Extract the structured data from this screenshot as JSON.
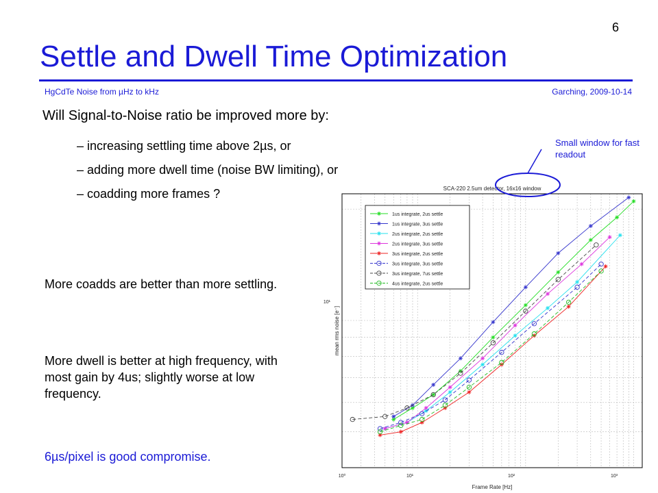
{
  "page_number": "6",
  "title": "Settle and Dwell Time Optimization",
  "footer": {
    "left": "HgCdTe Noise from µHz to kHz",
    "right": "Garching, 2009-10-14"
  },
  "question": "Will Signal-to-Noise ratio be improved more by:",
  "bullets": [
    "– increasing settling time above 2µs, or",
    "– adding more dwell time (noise BW limiting), or",
    "– coadding more frames ?"
  ],
  "callout": "Small window for fast readout",
  "notes": [
    "More coadds are better than more settling.",
    "More dwell is better at high frequency, with most gain by 4us; slightly worse at low frequency."
  ],
  "conclusion": "6µs/pixel is good compromise.",
  "colors": {
    "accent": "#1a1ad6"
  },
  "chart_data": {
    "type": "line",
    "title": "SCA-220 2.5um detector, 16x16 window",
    "xlabel": "Frame Rate [Hz]",
    "ylabel": "mean rms noise [e⁻]",
    "x_scale": "log",
    "y_scale": "log",
    "xlim": [
      2,
      1200
    ],
    "ylim": [
      4,
      22
    ],
    "xticks": [
      "10⁰",
      "10¹",
      "10²",
      "10³"
    ],
    "ytick_label": "10¹",
    "grid": true,
    "legend_position": "top-left",
    "series": [
      {
        "name": "1us integrate, 2us settle",
        "color": "#22dd22",
        "dash": false,
        "marker": "star",
        "x": [
          6,
          9,
          14,
          25,
          50,
          100,
          200,
          400,
          700,
          1000
        ],
        "y": [
          5.4,
          5.8,
          6.3,
          7.3,
          9.0,
          11.0,
          13.5,
          16.5,
          19.0,
          21.0
        ]
      },
      {
        "name": "1us integrate, 3us settle",
        "color": "#3333cc",
        "dash": false,
        "marker": "star",
        "x": [
          6,
          9,
          14,
          25,
          50,
          100,
          200,
          400,
          900
        ],
        "y": [
          5.5,
          5.9,
          6.7,
          7.9,
          9.9,
          12.3,
          15.2,
          18.0,
          21.5
        ]
      },
      {
        "name": "2us integrate, 2us settle",
        "color": "#22e0ee",
        "dash": false,
        "marker": "star",
        "x": [
          5,
          8,
          12,
          20,
          40,
          80,
          160,
          300,
          750
        ],
        "y": [
          5.1,
          5.3,
          5.7,
          6.4,
          7.6,
          9.1,
          10.8,
          12.7,
          17.0
        ]
      },
      {
        "name": "2us integrate, 3us settle",
        "color": "#dd33dd",
        "dash": false,
        "marker": "star",
        "x": [
          5,
          8,
          12,
          20,
          40,
          80,
          160,
          330,
          600
        ],
        "y": [
          5.1,
          5.3,
          5.8,
          6.6,
          7.9,
          9.7,
          11.8,
          14.2,
          16.8
        ]
      },
      {
        "name": "3us integrate, 2us settle",
        "color": "#ee2222",
        "dash": false,
        "marker": "star",
        "x": [
          4.5,
          7,
          11,
          18,
          30,
          60,
          120,
          250,
          550
        ],
        "y": [
          4.9,
          5.0,
          5.3,
          5.8,
          6.4,
          7.6,
          9.1,
          10.9,
          14.0
        ]
      },
      {
        "name": "3us integrate, 3us settle",
        "color": "#3333cc",
        "dash": true,
        "marker": "circle",
        "x": [
          4.5,
          7,
          11,
          18,
          30,
          60,
          120,
          300,
          500
        ],
        "y": [
          5.1,
          5.3,
          5.6,
          6.1,
          6.9,
          8.2,
          9.8,
          12.3,
          14.2
        ]
      },
      {
        "name": "3us integrate, 7us settle",
        "color": "#444444",
        "dash": true,
        "marker": "circle",
        "x": [
          2.5,
          5,
          8,
          14,
          25,
          50,
          100,
          200,
          450
        ],
        "y": [
          5.4,
          5.5,
          5.8,
          6.3,
          7.2,
          8.7,
          10.6,
          12.9,
          16.0
        ]
      },
      {
        "name": "4us integrate, 2us settle",
        "color": "#22bb22",
        "dash": true,
        "marker": "circle",
        "x": [
          4.5,
          7,
          11,
          18,
          30,
          60,
          120,
          250,
          500
        ],
        "y": [
          5.0,
          5.2,
          5.4,
          5.9,
          6.6,
          7.7,
          9.2,
          11.2,
          13.6
        ]
      }
    ]
  }
}
